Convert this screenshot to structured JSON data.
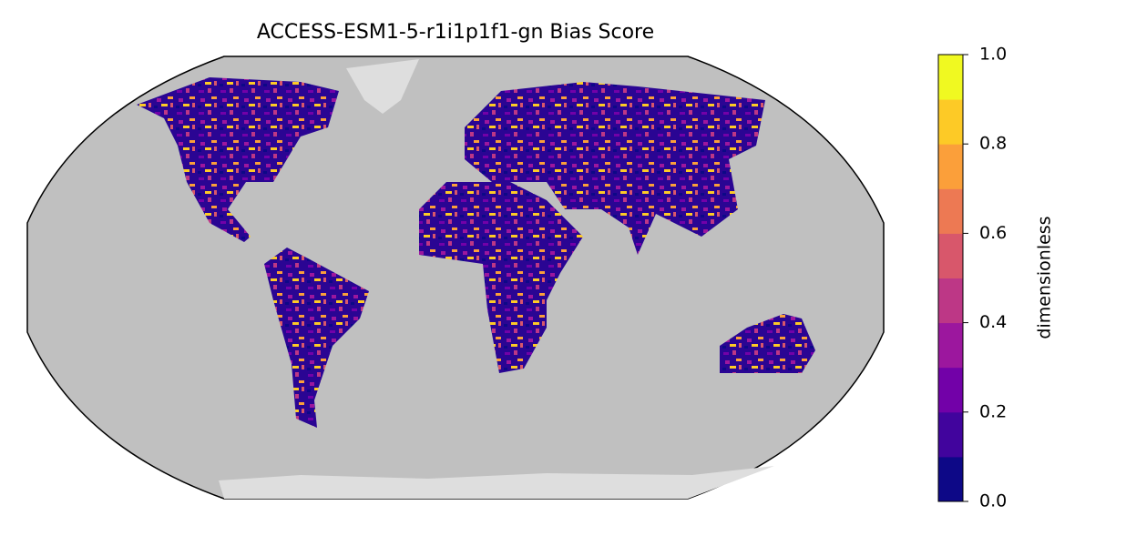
{
  "title": "ACCESS-ESM1-5-r1i1p1f1-gn Bias Score",
  "colorbar": {
    "label": "dimensionless",
    "lim": [
      0,
      1
    ],
    "ticks": [
      {
        "value": 0,
        "label": "0.0"
      },
      0.2,
      0.4,
      0.6,
      0.8,
      {
        "value": 1,
        "label": "1.0"
      }
    ],
    "colors": [
      "#0d0887",
      "#41049d",
      "#7201a8",
      "#9c179e",
      "#bd3786",
      "#d8576b",
      "#ed7953",
      "#fb9f3a",
      "#fdca26",
      "#f0f921"
    ]
  }
}
